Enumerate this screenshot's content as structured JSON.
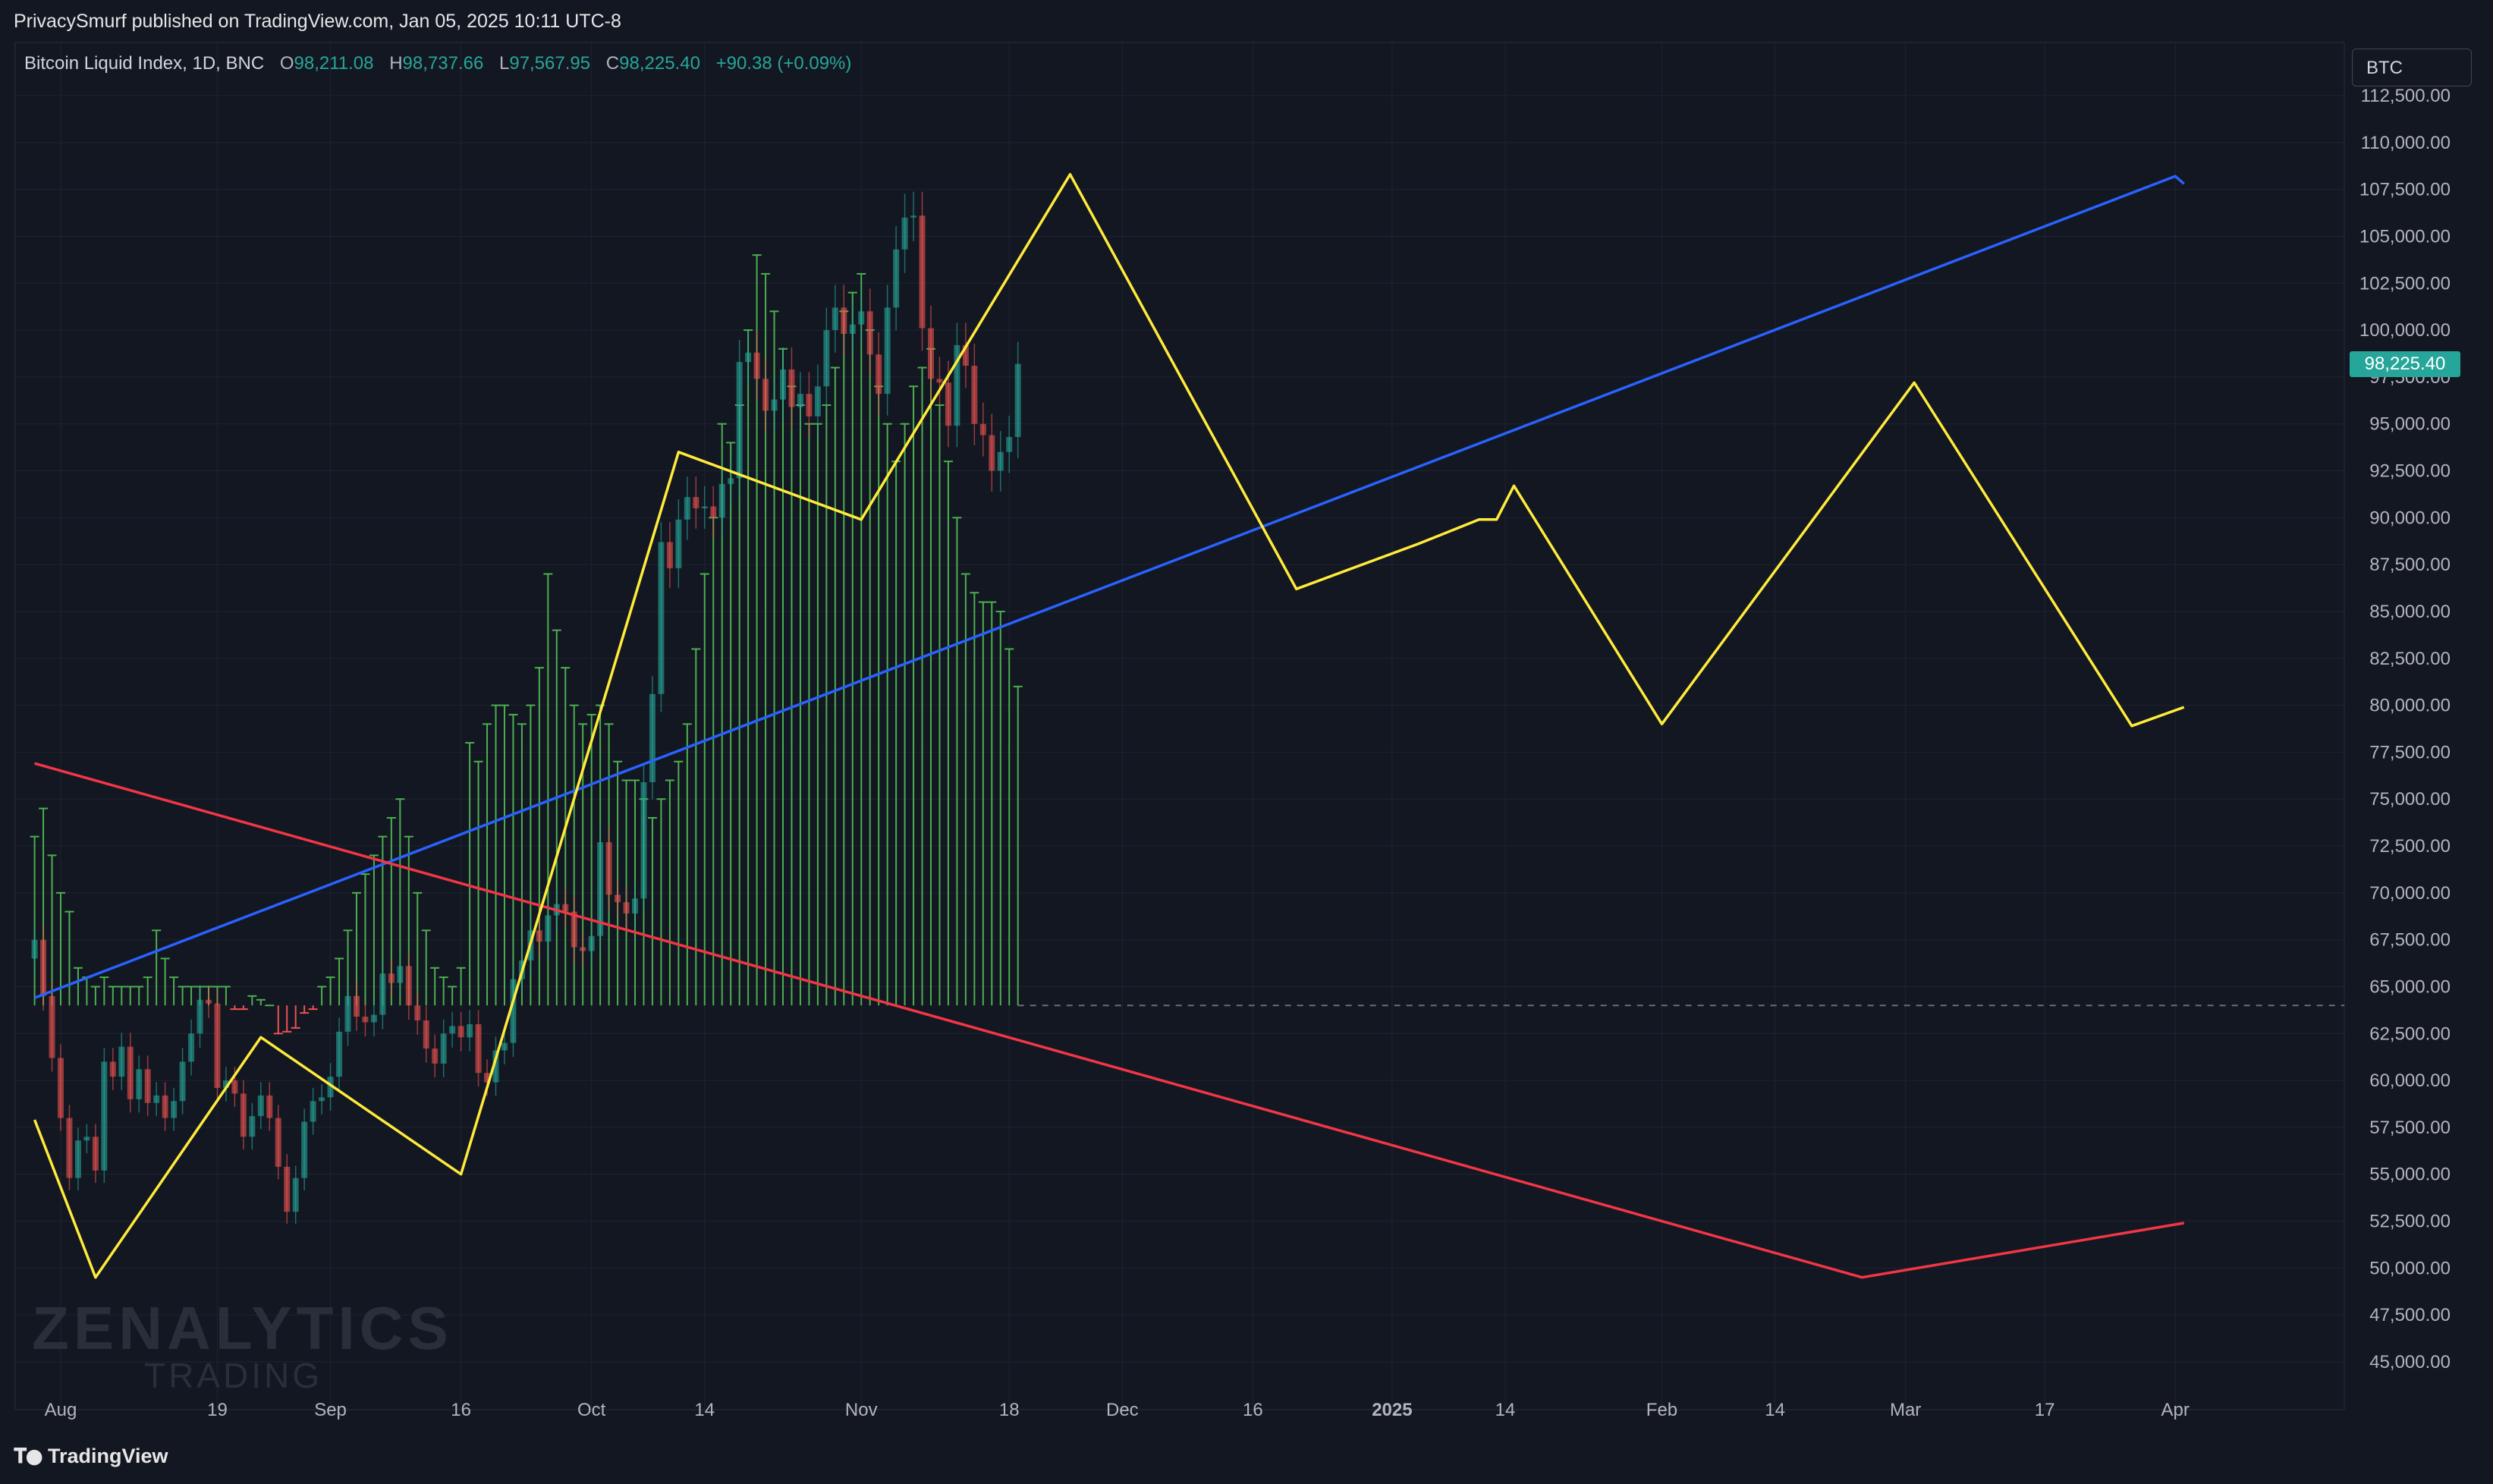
{
  "publisher": "PrivacySmurf published on TradingView.com, Jan 05, 2025 10:11 UTC-8",
  "legend": {
    "symbol": "Bitcoin Liquid Index, 1D, BNC",
    "o_label": "O",
    "o_value": "98,211.08",
    "h_label": "H",
    "h_value": "98,737.66",
    "l_label": "L",
    "l_value": "97,567.95",
    "c_label": "C",
    "c_value": "98,225.40",
    "change": "+90.38 (+0.09%)"
  },
  "symbol_box": "BTC",
  "last_price_tag": "98,225.40",
  "watermark": {
    "line1": "ZENALYTICS",
    "line2": "TRADING"
  },
  "branding": "TradingView",
  "colors": {
    "background": "#131722",
    "grid": "#1f2330",
    "axis_text": "#b2b5be",
    "candle_up": "#26a69a",
    "candle_down": "#ef5350",
    "oscillator_up": "#4caf50",
    "oscillator_down": "#ef5350",
    "projection": "#ffeb3b",
    "trend_up": "#2962ff",
    "trend_down": "#f23645",
    "price_tag": "#26a69a"
  },
  "icons": {
    "branding": "tradingview-logo-icon"
  },
  "chart_data": {
    "type": "candlestick",
    "y_axis": {
      "min": 43750,
      "max": 113750,
      "scale": "linear",
      "position": "right",
      "ticks": [
        "112,500.00",
        "110,000.00",
        "107,500.00",
        "105,000.00",
        "102,500.00",
        "100,000.00",
        "97,500.00",
        "95,000.00",
        "92,500.00",
        "90,000.00",
        "87,500.00",
        "85,000.00",
        "82,500.00",
        "80,000.00",
        "77,500.00",
        "75,000.00",
        "72,500.00",
        "70,000.00",
        "67,500.00",
        "65,000.00",
        "62,500.00",
        "60,000.00",
        "57,500.00",
        "55,000.00",
        "52,500.00",
        "50,000.00",
        "47,500.00",
        "45,000.00"
      ]
    },
    "x_axis": {
      "ticks": [
        {
          "label": "Aug",
          "date": "2024-08-01",
          "bold": false
        },
        {
          "label": "19",
          "date": "2024-08-19",
          "bold": false
        },
        {
          "label": "Sep",
          "date": "2024-09-01",
          "bold": false
        },
        {
          "label": "16",
          "date": "2024-09-16",
          "bold": false
        },
        {
          "label": "Oct",
          "date": "2024-10-01",
          "bold": false
        },
        {
          "label": "14",
          "date": "2024-10-14",
          "bold": false
        },
        {
          "label": "Nov",
          "date": "2024-11-01",
          "bold": false
        },
        {
          "label": "18",
          "date": "2024-11-18",
          "bold": false
        },
        {
          "label": "Dec",
          "date": "2024-12-01",
          "bold": false
        },
        {
          "label": "16",
          "date": "2024-12-16",
          "bold": false
        },
        {
          "label": "2025",
          "date": "2025-01-01",
          "bold": true
        },
        {
          "label": "14",
          "date": "2025-01-14",
          "bold": false
        },
        {
          "label": "Feb",
          "date": "2025-02-01",
          "bold": false
        },
        {
          "label": "14",
          "date": "2025-02-14",
          "bold": false
        },
        {
          "label": "Mar",
          "date": "2025-03-01",
          "bold": false
        },
        {
          "label": "17",
          "date": "2025-03-17",
          "bold": false
        },
        {
          "label": "Apr",
          "date": "2025-04-01",
          "bold": false
        }
      ]
    },
    "candle_series": {
      "name": "Bitcoin Liquid Index, 1D, BNC",
      "start_date": "2024-07-29",
      "closes": [
        67500,
        64500,
        61200,
        58000,
        54800,
        56800,
        57000,
        55200,
        61000,
        60200,
        61800,
        59000,
        60600,
        58800,
        59200,
        58000,
        58900,
        61000,
        62500,
        64300,
        64100,
        59600,
        60000,
        59300,
        57000,
        58100,
        59200,
        58000,
        55400,
        53000,
        54800,
        57800,
        58900,
        59100,
        60200,
        62600,
        64500,
        63400,
        63100,
        63500,
        65700,
        65200,
        66100,
        64000,
        63200,
        61700,
        60900,
        62500,
        62900,
        62300,
        63000,
        60400,
        59900,
        61600,
        62000,
        65400,
        66400,
        68000,
        67400,
        68800,
        69400,
        69000,
        67100,
        66900,
        67700,
        72700,
        69900,
        69500,
        68900,
        69700,
        75900,
        80600,
        88700,
        87300,
        89900,
        91100,
        90500,
        90600,
        90000,
        91800,
        92100,
        98300,
        98800,
        97400,
        95700,
        96300,
        97900,
        95900,
        96600,
        95400,
        97000,
        100000,
        101200,
        99800,
        100300,
        101000,
        98700,
        96600,
        101200,
        104300,
        106000,
        106100,
        100100,
        97400,
        97200,
        94900,
        99200,
        98100,
        95000,
        94400,
        92500,
        93500,
        94300,
        98200
      ]
    },
    "oscillator_series": {
      "name": "",
      "baseline": 64000,
      "values": [
        73000,
        74500,
        72000,
        70000,
        69000,
        66000,
        65500,
        65000,
        65500,
        65000,
        65000,
        65000,
        65000,
        65500,
        68000,
        66500,
        65500,
        65000,
        65000,
        65000,
        65000,
        65000,
        65000,
        63800,
        63800,
        64500,
        64300,
        64000,
        62500,
        62600,
        62800,
        63600,
        63800,
        65000,
        65500,
        66500,
        68000,
        70000,
        71000,
        72000,
        73000,
        74000,
        75000,
        73000,
        70000,
        68000,
        66000,
        65500,
        65000,
        66000,
        78000,
        77000,
        79000,
        80000,
        80000,
        79500,
        79000,
        80000,
        82000,
        87000,
        84000,
        82000,
        80000,
        79000,
        79500,
        80000,
        79000,
        77000,
        76000,
        76000,
        75000,
        74000,
        75000,
        76000,
        77000,
        79000,
        83000,
        87000,
        90000,
        95000,
        94000,
        96000,
        100000,
        104000,
        103000,
        101000,
        99000,
        97000,
        96000,
        95000,
        95000,
        96000,
        98000,
        101000,
        102000,
        103000,
        100000,
        97000,
        95000,
        93000,
        95000,
        97000,
        98000,
        99000,
        96000,
        93000,
        90000,
        87000,
        86000,
        85500,
        85500,
        85000,
        83000,
        81000
      ]
    },
    "trend_lines": [
      {
        "color": "blue",
        "points": [
          [
            "2024-07-29",
            64400
          ],
          [
            "2025-04-01",
            108200
          ],
          [
            "2025-04-02",
            107800
          ]
        ]
      },
      {
        "color": "red",
        "points": [
          [
            "2024-07-29",
            76900
          ],
          [
            "2025-02-24",
            49500
          ],
          [
            "2025-04-02",
            52400
          ]
        ]
      }
    ],
    "projection_path": {
      "color": "yellow",
      "points": [
        [
          "2024-07-29",
          57900
        ],
        [
          "2024-08-05",
          49500
        ],
        [
          "2024-08-24",
          62300
        ],
        [
          "2024-09-16",
          55000
        ],
        [
          "2024-10-11",
          93500
        ],
        [
          "2024-11-01",
          89900
        ],
        [
          "2024-11-25",
          108300
        ],
        [
          "2024-12-21",
          86200
        ],
        [
          "2025-01-04",
          88600
        ],
        [
          "2025-01-11",
          89900
        ],
        [
          "2025-01-13",
          89900
        ],
        [
          "2025-01-15",
          91700
        ],
        [
          "2025-02-01",
          79000
        ],
        [
          "2025-03-02",
          97200
        ],
        [
          "2025-03-27",
          78900
        ],
        [
          "2025-04-02",
          79900
        ]
      ]
    },
    "reference_line": {
      "value": 64000,
      "style": "dashed"
    },
    "last_price": 98225.4,
    "grid": true,
    "legend_position": "top-left"
  }
}
